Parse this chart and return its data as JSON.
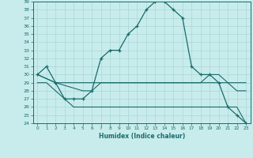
{
  "title": "",
  "xlabel": "Humidex (Indice chaleur)",
  "bg_color": "#c8ecec",
  "grid_color": "#b0dada",
  "line_color": "#1a6b6b",
  "xlim": [
    -0.5,
    23.5
  ],
  "ylim": [
    24,
    39
  ],
  "xticks": [
    0,
    1,
    2,
    3,
    4,
    5,
    6,
    7,
    8,
    9,
    10,
    11,
    12,
    13,
    14,
    15,
    16,
    17,
    18,
    19,
    20,
    21,
    22,
    23
  ],
  "yticks": [
    24,
    25,
    26,
    27,
    28,
    29,
    30,
    31,
    32,
    33,
    34,
    35,
    36,
    37,
    38,
    39
  ],
  "line1_x": [
    0,
    1,
    2,
    3,
    4,
    5,
    6,
    7,
    8,
    9,
    10,
    11,
    12,
    13,
    14,
    15,
    16,
    17,
    18,
    19,
    20,
    21,
    22,
    23
  ],
  "line1_y": [
    30,
    31,
    29,
    27,
    27,
    27,
    28,
    32,
    33,
    33,
    35,
    36,
    38,
    39,
    39,
    38,
    37,
    31,
    30,
    30,
    29,
    26,
    25,
    24
  ],
  "line2_x": [
    0,
    2,
    5,
    6,
    7,
    8,
    9,
    10,
    11,
    12,
    13,
    14,
    15,
    16,
    17,
    18,
    19,
    20,
    21,
    22,
    23
  ],
  "line2_y": [
    30,
    29,
    29,
    29,
    29,
    29,
    29,
    29,
    29,
    29,
    29,
    29,
    29,
    29,
    29,
    29,
    30,
    30,
    29,
    28,
    28
  ],
  "line3_x": [
    0,
    2,
    5,
    6,
    7,
    8,
    9,
    10,
    11,
    12,
    13,
    14,
    15,
    16,
    17,
    18,
    19,
    20,
    21,
    22,
    23
  ],
  "line3_y": [
    30,
    29,
    28,
    28,
    29,
    29,
    29,
    29,
    29,
    29,
    29,
    29,
    29,
    29,
    29,
    29,
    29,
    29,
    29,
    29,
    29
  ],
  "line4_x": [
    0,
    1,
    2,
    3,
    4,
    5,
    6,
    7,
    8,
    9,
    10,
    11,
    12,
    13,
    14,
    15,
    16,
    17,
    18,
    19,
    20,
    21,
    22,
    23
  ],
  "line4_y": [
    29,
    29,
    28,
    27,
    26,
    26,
    26,
    26,
    26,
    26,
    26,
    26,
    26,
    26,
    26,
    26,
    26,
    26,
    26,
    26,
    26,
    26,
    26,
    24
  ]
}
